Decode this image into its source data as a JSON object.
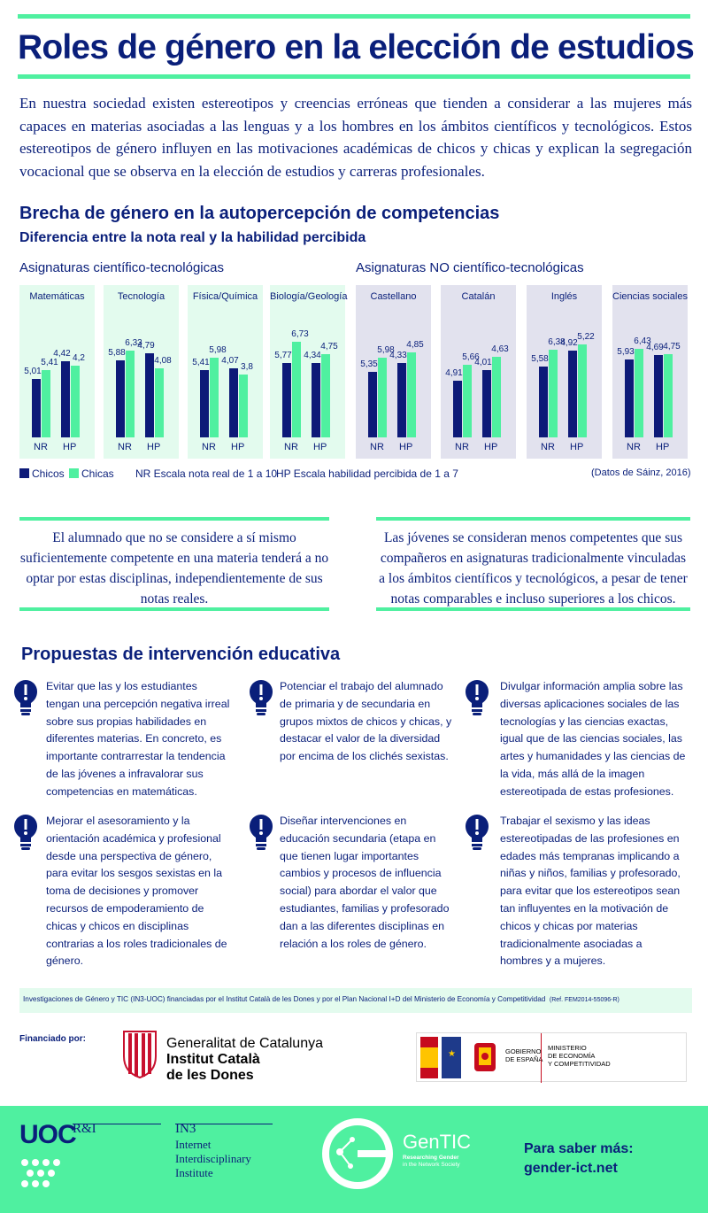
{
  "title": "Roles de género en la elección de estudios",
  "intro": "En nuestra sociedad existen estereotipos y creencias erróneas que tienden a considerar a las mujeres más capaces en materias asociadas a las lenguas y a los hombres en los ámbitos científicos y tecnológicos. Estos estereotipos de género influyen en las motivaciones académicas de chicos y chicas y explican la segregación vocacional que se observa en la elección de estudios y carreras profesionales.",
  "section1_title": "Brecha de género en la autopercepción de competencias",
  "section1_subtitle": "Diferencia entre la nota real y la habilidad percibida",
  "group_sci": "Asignaturas científico-tecnológicas",
  "group_non": "Asignaturas NO científico-tecnológicas",
  "chart_data": {
    "type": "bar",
    "series": [
      {
        "name": "Chicos",
        "color": "#0d1a78"
      },
      {
        "name": "Chicas",
        "color": "#4ff0a0"
      }
    ],
    "x_labels": [
      "NR",
      "HP"
    ],
    "panels": [
      {
        "name": "Matemáticas",
        "group": "sci",
        "NR": [
          "5,01",
          "5,41"
        ],
        "HP": [
          "4,42",
          "4,2"
        ]
      },
      {
        "name": "Tecnología",
        "group": "sci",
        "NR": [
          "5,88",
          "6,33"
        ],
        "HP": [
          "4,79",
          "4,08"
        ]
      },
      {
        "name": "Física/Química",
        "group": "sci",
        "NR": [
          "5,41",
          "5,98"
        ],
        "HP": [
          "4,07",
          "3,8"
        ]
      },
      {
        "name": "Biología/Geología",
        "group": "sci",
        "NR": [
          "5,77",
          "6,73"
        ],
        "HP": [
          "4,34",
          "4,75"
        ]
      },
      {
        "name": "Castellano",
        "group": "non",
        "NR": [
          "5,35",
          "5,98"
        ],
        "HP": [
          "4,33",
          "4,85"
        ]
      },
      {
        "name": "Catalán",
        "group": "non",
        "NR": [
          "4,91",
          "5,66"
        ],
        "HP": [
          "4,01",
          "4,63"
        ]
      },
      {
        "name": "Inglés",
        "group": "non",
        "NR": [
          "5,58",
          "6,38"
        ],
        "HP": [
          "4,92",
          "5,22"
        ]
      },
      {
        "name": "Ciencias sociales",
        "group": "non",
        "NR": [
          "5,93",
          "6,43"
        ],
        "HP": [
          "4,69",
          "4,75"
        ]
      }
    ]
  },
  "legend": {
    "boys": "Chicos",
    "girls": "Chicas",
    "nr": "NR Escala nota real de 1 a 10",
    "hp": "HP Escala habilidad percibida de 1 a 7",
    "source": "(Datos de Sáinz, 2016)"
  },
  "box_left": "El alumnado que no se considere a sí mismo suficientemente competente en una materia tenderá a no optar por estas disciplinas, independientemente de sus notas reales.",
  "box_right": "Las jóvenes se consideran menos competentes que sus compañeros en asignaturas tradicionalmente vinculadas a los ámbitos científicos y tecnológicos, a pesar de tener notas comparables e incluso superiores a los chicos.",
  "section2_title": "Propuestas de intervención educativa",
  "proposals": [
    "Evitar que las y los estudiantes tengan una percepción negativa irreal sobre sus propias habilidades en diferentes materias. En concreto, es importante contrarrestar la tendencia de las jóvenes a infravalorar sus competencias en matemáticas.",
    "Potenciar el trabajo del alumnado de primaria y de secundaria en grupos mixtos de chicos y chicas, y destacar el valor de la diversidad por encima de los clichés sexistas.",
    "Divulgar información amplia sobre las diversas aplicaciones sociales de las tecnologías y las ciencias exactas, igual que de las ciencias sociales, las artes y humanidades y las ciencias de la vida, más allá de la imagen estereotipada de estas profesiones.",
    "Mejorar el asesoramiento y la orientación académica y profesional desde una perspectiva de género, para evitar los sesgos sexistas en la toma de decisiones y promover recursos de empoderamiento de chicas y chicos en disciplinas contrarias a los roles tradicionales de género.",
    "Diseñar intervenciones en educación secundaria (etapa en que tienen lugar importantes cambios y procesos de influencia social) para abordar el valor que estudiantes, familias y profesorado dan a las diferentes disciplinas en relación a los roles de género.",
    "Trabajar el sexismo y las ideas estereotipadas de las profesiones en edades más tempranas implicando a niñas y niños, familias y profesorado, para evitar que los estereotipos sean tan influyentes en la motivación de chicos y chicas por materias tradicionalmente asociadas a hombres y a mujeres."
  ],
  "footnote": "Investigaciones de Género y TIC (IN3-UOC) financiadas por el Institut Català de les Dones y por el Plan Nacional I+D del Ministerio de Economía y Competitividad",
  "footnote_ref": "(Ref. FEM2014-55096-R)",
  "funded_by": "Financiado por:",
  "icd": {
    "line1": "Generalitat de Catalunya",
    "line2": "Institut Català",
    "line3": "de les Dones"
  },
  "ministry": {
    "gob1": "GOBIERNO",
    "gob2": "DE ESPAÑA",
    "min1": "MINISTERIO",
    "min2": "DE ECONOMÍA",
    "min3": "Y COMPETITIVIDAD"
  },
  "uoc": {
    "logo": "UOC",
    "ri": "R&I",
    "in3": "IN3",
    "in3_1": "Internet",
    "in3_2": "Interdisciplinary",
    "in3_3": "Institute"
  },
  "gentic": {
    "name": "GenTIC",
    "tag1": "Researching Gender",
    "tag2": "in the Network Society"
  },
  "more": {
    "label": "Para saber más:",
    "url": "gender-ict.net"
  },
  "colors": {
    "navy": "#0a1f7a",
    "green": "#4ff0a0",
    "sci_panel": "#e3fbee",
    "non_panel": "#e2e2ee"
  }
}
